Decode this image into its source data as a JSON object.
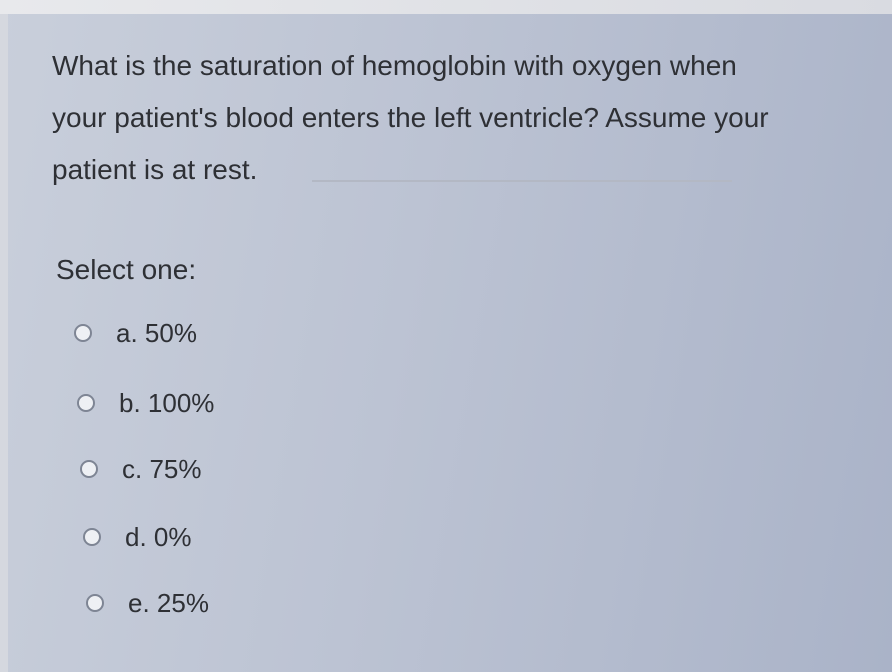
{
  "question": {
    "lines": [
      "What is the saturation of hemoglobin with oxygen when",
      "your patient's blood enters the left ventricle? Assume your",
      "patient is at rest."
    ]
  },
  "prompt": "Select one:",
  "options": [
    "a. 50%",
    "b. 100%",
    "c. 75%",
    "d. 0%",
    "e. 25%"
  ]
}
